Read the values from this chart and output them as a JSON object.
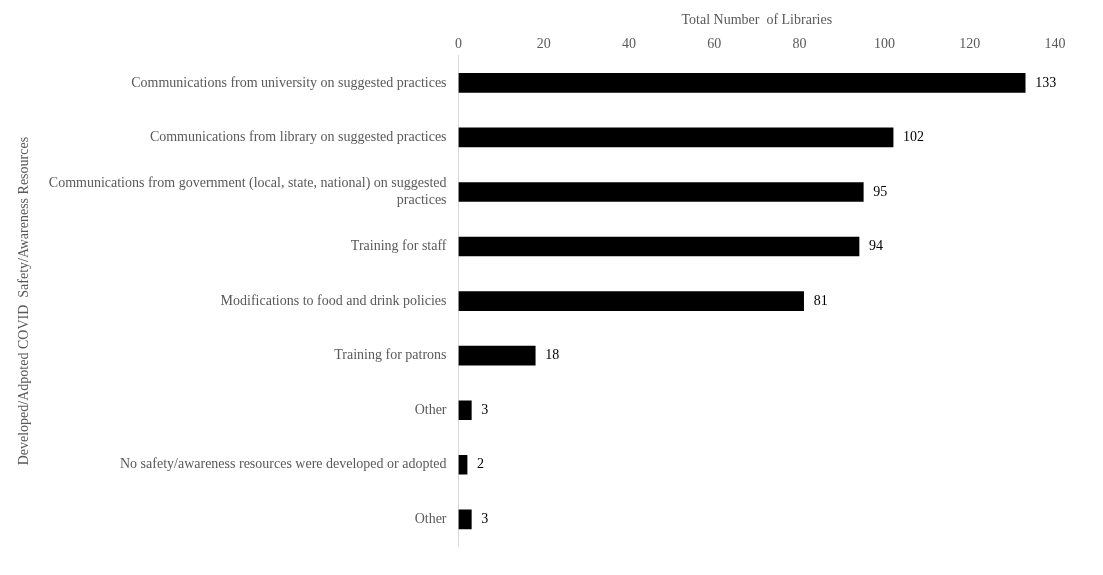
{
  "chart_data": {
    "type": "bar",
    "orientation": "horizontal",
    "xlabel": "Total Number  of Libraries",
    "ylabel": "Developed/Adpoted COVID  Safety/Awareness Resources",
    "categories": [
      "Communications from university on suggested practices",
      "Communications from library on suggested practices",
      "Communications from government (local, state, national) on suggested practices",
      "Training for staff",
      "Modifications to food and drink policies",
      "Training for patrons",
      "Other",
      "No safety/awareness resources were developed or adopted",
      "Other"
    ],
    "values": [
      133,
      102,
      95,
      94,
      81,
      18,
      3,
      2,
      3
    ],
    "color": "#000000",
    "xlim": [
      0,
      140
    ],
    "xticks": [
      0,
      20,
      40,
      60,
      80,
      100,
      120,
      140
    ],
    "grid": false,
    "legend": false,
    "data_labels": true
  }
}
